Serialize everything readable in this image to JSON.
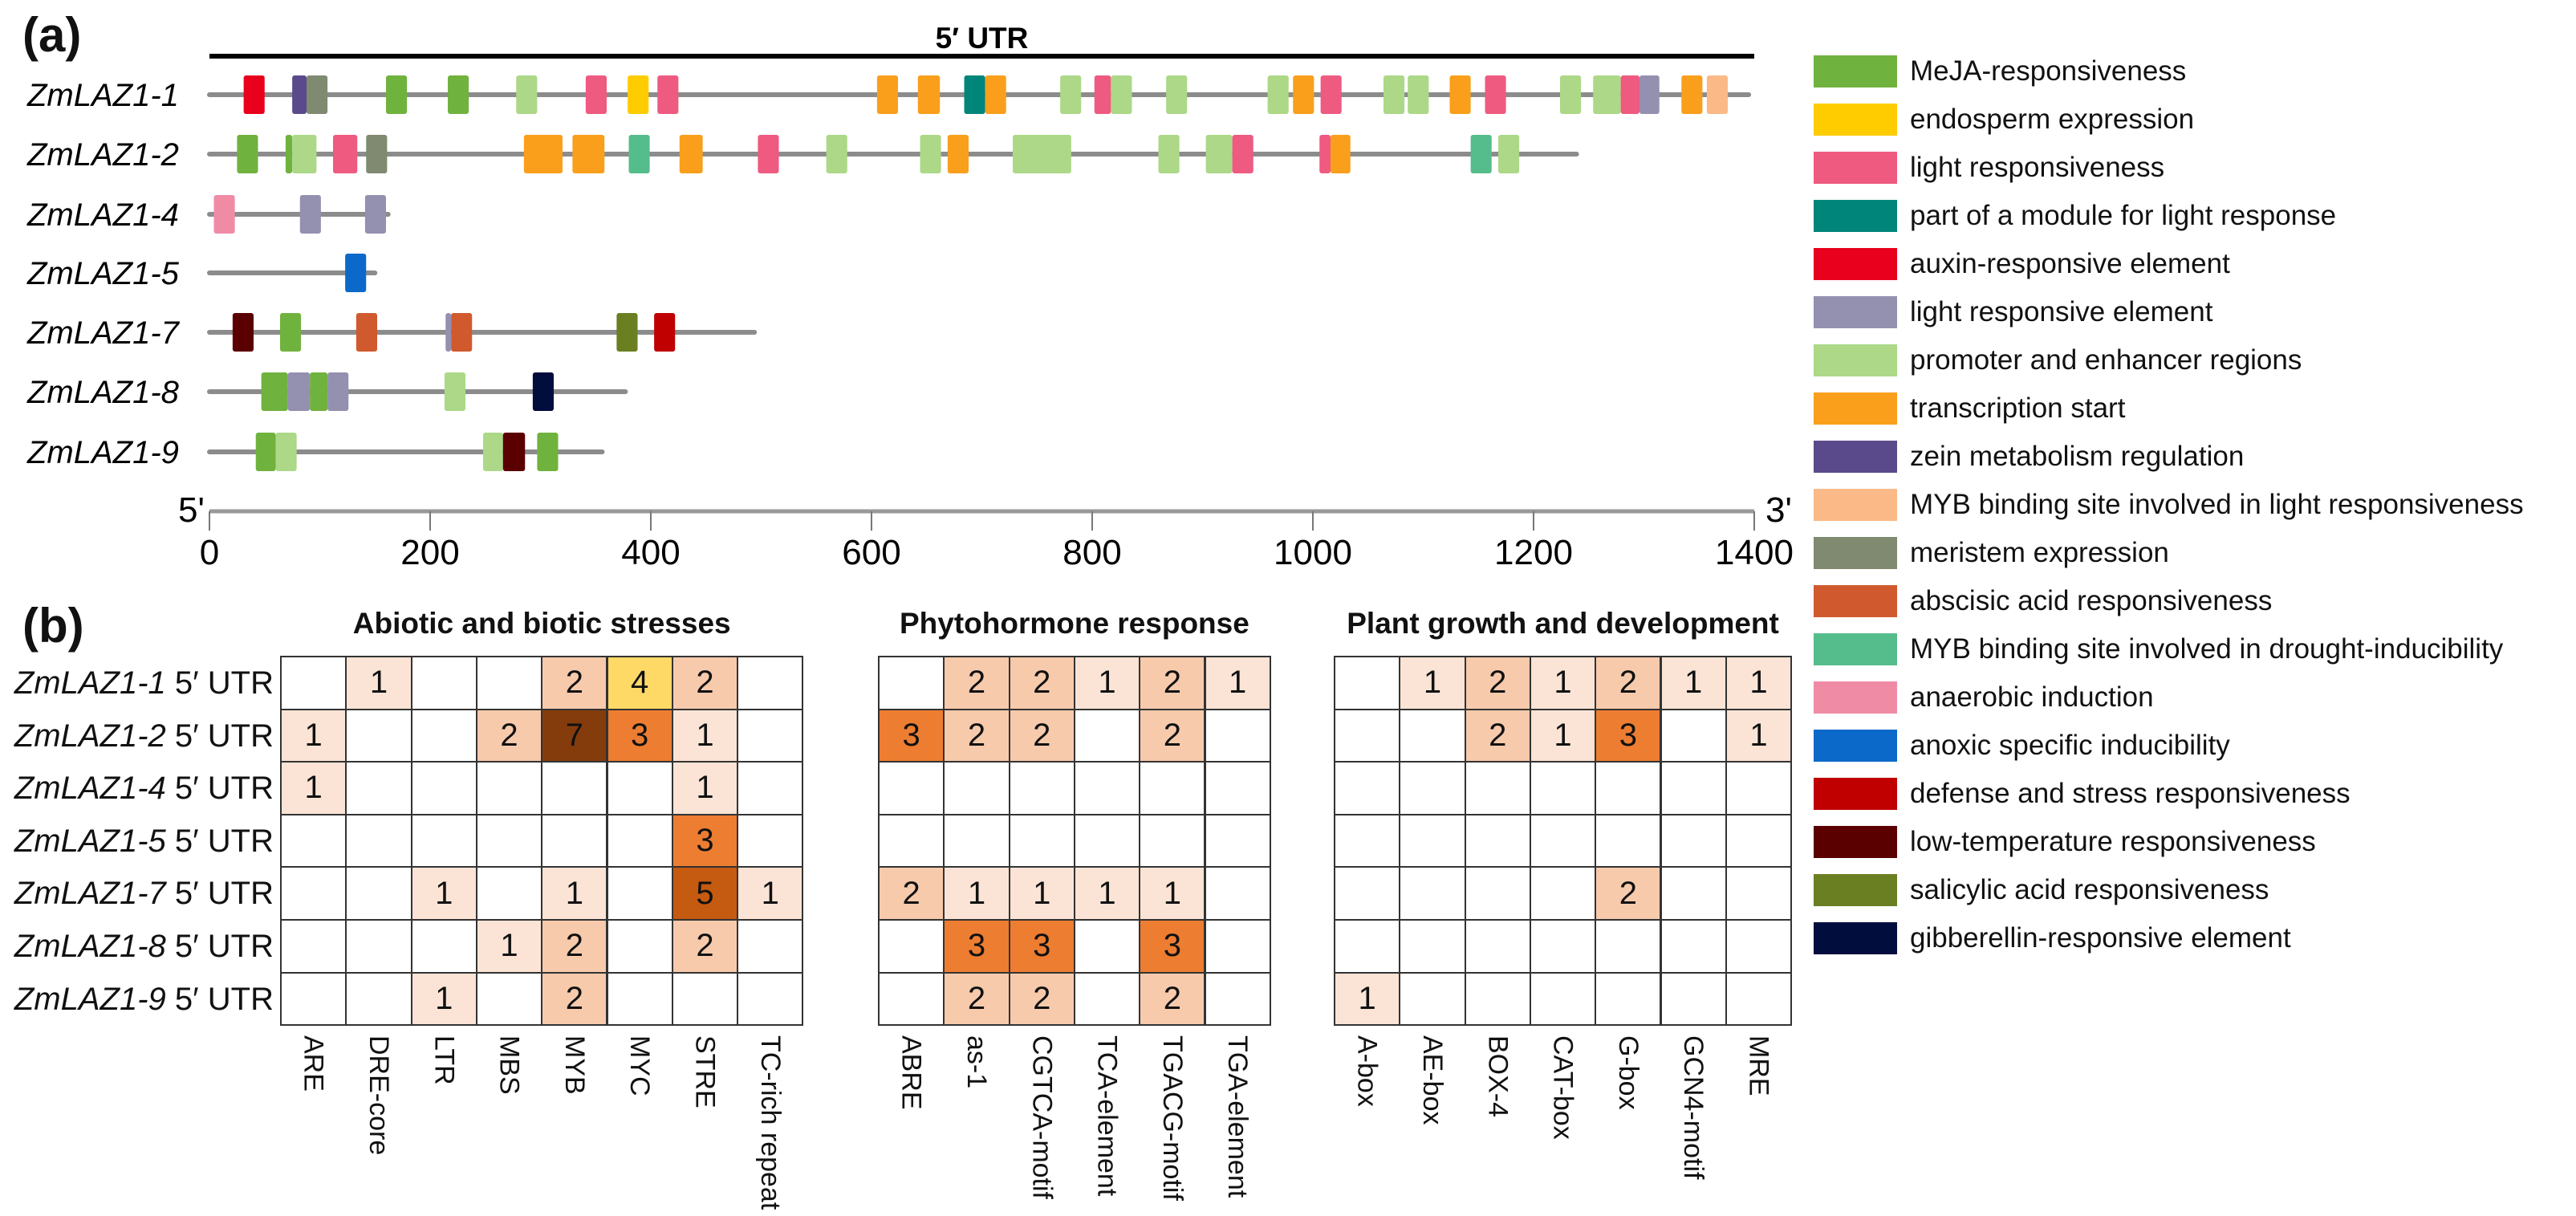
{
  "panel_labels": {
    "a": "(a)",
    "b": "(b)"
  },
  "legend": [
    {
      "label": "MeJA-responsiveness",
      "color": "#70b23e"
    },
    {
      "label": "endosperm expression",
      "color": "#ffcc00"
    },
    {
      "label": "light responsiveness",
      "color": "#ef5a80"
    },
    {
      "label": "part of a module for light response",
      "color": "#00857a"
    },
    {
      "label": "auxin-responsive element",
      "color": "#e8001c"
    },
    {
      "label": "light responsive element",
      "color": "#9490b0"
    },
    {
      "label": "promoter and enhancer regions",
      "color": "#acd887"
    },
    {
      "label": "transcription start",
      "color": "#f99f1b"
    },
    {
      "label": "zein metabolism regulation",
      "color": "#5b4a8b"
    },
    {
      "label": "MYB binding site involved in light responsiveness",
      "color": "#fbb987"
    },
    {
      "label": "meristem expression",
      "color": "#7f8a70"
    },
    {
      "label": "abscisic acid responsiveness",
      "color": "#d05a2e"
    },
    {
      "label": "MYB binding site involved in drought-inducibility",
      "color": "#55bd8c"
    },
    {
      "label": "anaerobic induction",
      "color": "#f08ba6"
    },
    {
      "label": "anoxic specific inducibility",
      "color": "#0b69c9"
    },
    {
      "label": "defense and stress responsiveness",
      "color": "#c00000"
    },
    {
      "label": "low-temperature responsiveness",
      "color": "#5a0000"
    },
    {
      "label": "salicylic acid responsiveness",
      "color": "#6a7f22"
    },
    {
      "label": "gibberellin-responsive element",
      "color": "#000d3d"
    }
  ],
  "chart_data": [
    {
      "type": "gene-structure",
      "title": "5′ UTR",
      "axis": {
        "start_label": "5'",
        "end_label": "3'",
        "xlim": [
          0,
          1400
        ],
        "ticks": [
          "0",
          "200",
          "400",
          "600",
          "800",
          "1000",
          "1200",
          "1400"
        ]
      },
      "line_color": "#8c8c8c",
      "genes": [
        {
          "name": "ZmLAZ1-1",
          "length": 1395,
          "elements": [
            [
              31,
              50,
              4
            ],
            [
              75,
              88,
              8
            ],
            [
              88,
              107,
              10
            ],
            [
              160,
              179,
              0
            ],
            [
              216,
              235,
              0
            ],
            [
              278,
              297,
              6
            ],
            [
              341,
              360,
              2
            ],
            [
              379,
              398,
              1
            ],
            [
              406,
              425,
              2
            ],
            [
              605,
              624,
              7
            ],
            [
              642,
              662,
              7
            ],
            [
              684,
              703,
              3
            ],
            [
              703,
              722,
              7
            ],
            [
              771,
              790,
              6
            ],
            [
              802,
              817,
              2
            ],
            [
              817,
              836,
              6
            ],
            [
              867,
              886,
              6
            ],
            [
              959,
              978,
              6
            ],
            [
              982,
              1001,
              7
            ],
            [
              1007,
              1026,
              2
            ],
            [
              1064,
              1083,
              6
            ],
            [
              1086,
              1105,
              6
            ],
            [
              1124,
              1143,
              7
            ],
            [
              1156,
              1175,
              2
            ],
            [
              1224,
              1243,
              6
            ],
            [
              1254,
              1279,
              6
            ],
            [
              1279,
              1296,
              2
            ],
            [
              1296,
              1314,
              5
            ],
            [
              1334,
              1353,
              7
            ],
            [
              1357,
              1376,
              9
            ]
          ]
        },
        {
          "name": "ZmLAZ1-2",
          "length": 1239,
          "elements": [
            [
              25,
              44,
              0
            ],
            [
              69,
              75,
              0
            ],
            [
              75,
              97,
              6
            ],
            [
              112,
              134,
              2
            ],
            [
              142,
              161,
              10
            ],
            [
              285,
              320,
              7
            ],
            [
              329,
              358,
              7
            ],
            [
              380,
              399,
              12
            ],
            [
              426,
              447,
              7
            ],
            [
              497,
              516,
              2
            ],
            [
              559,
              578,
              6
            ],
            [
              644,
              663,
              6
            ],
            [
              669,
              688,
              7
            ],
            [
              728,
              781,
              6
            ],
            [
              860,
              879,
              6
            ],
            [
              903,
              927,
              6
            ],
            [
              927,
              946,
              2
            ],
            [
              1006,
              1016,
              2
            ],
            [
              1016,
              1034,
              7
            ],
            [
              1143,
              1162,
              12
            ],
            [
              1168,
              1187,
              6
            ]
          ]
        },
        {
          "name": "ZmLAZ1-4",
          "length": 162,
          "elements": [
            [
              4,
              23,
              13
            ],
            [
              82,
              101,
              5
            ],
            [
              141,
              160,
              5
            ]
          ]
        },
        {
          "name": "ZmLAZ1-5",
          "length": 150,
          "elements": [
            [
              123,
              142,
              14
            ]
          ]
        },
        {
          "name": "ZmLAZ1-7",
          "length": 494,
          "elements": [
            [
              21,
              40,
              16
            ],
            [
              64,
              83,
              0
            ],
            [
              133,
              152,
              11
            ],
            [
              214,
              219,
              5
            ],
            [
              219,
              238,
              11
            ],
            [
              369,
              388,
              17
            ],
            [
              403,
              422,
              15
            ]
          ]
        },
        {
          "name": "ZmLAZ1-8",
          "length": 377,
          "elements": [
            [
              47,
              71,
              0
            ],
            [
              71,
              91,
              5
            ],
            [
              91,
              107,
              0
            ],
            [
              107,
              126,
              5
            ],
            [
              213,
              232,
              6
            ],
            [
              293,
              312,
              18
            ]
          ]
        },
        {
          "name": "ZmLAZ1-9",
          "length": 356,
          "elements": [
            [
              42,
              60,
              0
            ],
            [
              60,
              79,
              6
            ],
            [
              248,
              266,
              6
            ],
            [
              266,
              286,
              16
            ],
            [
              297,
              316,
              0
            ]
          ]
        }
      ]
    },
    {
      "type": "heatmap",
      "rows": [
        "ZmLAZ1-1",
        "ZmLAZ1-2",
        "ZmLAZ1-4",
        "ZmLAZ1-5",
        "ZmLAZ1-7",
        "ZmLAZ1-8",
        "ZmLAZ1-9"
      ],
      "row_suffix": "5′ UTR",
      "color_scale": {
        "1": "#fbe4d5",
        "2": "#f7caac",
        "3": "#ed7d31",
        "4": "#ffd966",
        "5": "#c55a11",
        "7": "#843c0c"
      },
      "panels": [
        {
          "title": "Abiotic and biotic stresses",
          "columns": [
            "ARE",
            "DRE-core",
            "LTR",
            "MBS",
            "MYB",
            "MYC",
            "STRE",
            "TC-rich repeat"
          ],
          "values": [
            [
              0,
              1,
              0,
              0,
              2,
              4,
              2,
              0
            ],
            [
              1,
              0,
              0,
              2,
              7,
              3,
              1,
              0
            ],
            [
              1,
              0,
              0,
              0,
              0,
              0,
              1,
              0
            ],
            [
              0,
              0,
              0,
              0,
              0,
              0,
              3,
              0
            ],
            [
              0,
              0,
              1,
              0,
              1,
              0,
              5,
              1
            ],
            [
              0,
              0,
              0,
              1,
              2,
              0,
              2,
              0
            ],
            [
              0,
              0,
              1,
              0,
              2,
              0,
              0,
              0
            ]
          ]
        },
        {
          "title": "Phytohormone response",
          "columns": [
            "ABRE",
            "as-1",
            "CGTCA-motif",
            "TCA-element",
            "TGACG-motif",
            "TGA-element"
          ],
          "values": [
            [
              0,
              2,
              2,
              1,
              2,
              1
            ],
            [
              3,
              2,
              2,
              0,
              2,
              0
            ],
            [
              0,
              0,
              0,
              0,
              0,
              0
            ],
            [
              0,
              0,
              0,
              0,
              0,
              0
            ],
            [
              2,
              1,
              1,
              1,
              1,
              0
            ],
            [
              0,
              3,
              3,
              0,
              3,
              0
            ],
            [
              0,
              2,
              2,
              0,
              2,
              0
            ]
          ]
        },
        {
          "title": "Plant growth and development",
          "columns": [
            "A-box",
            "AE-box",
            "BOX-4",
            "CAT-box",
            "G-box",
            "GCN4-motif",
            "MRE"
          ],
          "values": [
            [
              0,
              1,
              2,
              1,
              2,
              1,
              1
            ],
            [
              0,
              0,
              2,
              1,
              3,
              0,
              1
            ],
            [
              0,
              0,
              0,
              0,
              0,
              0,
              0
            ],
            [
              0,
              0,
              0,
              0,
              0,
              0,
              0
            ],
            [
              0,
              0,
              0,
              0,
              2,
              0,
              0
            ],
            [
              0,
              0,
              0,
              0,
              0,
              0,
              0
            ],
            [
              1,
              0,
              0,
              0,
              0,
              0,
              0
            ]
          ]
        }
      ]
    }
  ]
}
